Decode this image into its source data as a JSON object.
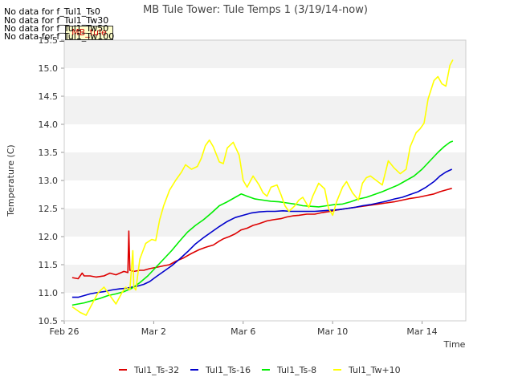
{
  "nodata_notes": [
    "No data for f_Tul1_Ts0",
    "No data for f_Tul1_Tw30",
    "No data for f_Tul1_Tw50",
    "No data for f_Tul1_Tw100"
  ],
  "site_tag": "MB_tule",
  "chart_data": {
    "type": "line",
    "title": "MB Tule Tower: Tule Temps 1 (3/19/14-now)",
    "xlabel": "Time",
    "ylabel": "Temperature (C)",
    "xlim": [
      0,
      20.2
    ],
    "ylim": [
      10.5,
      15.5
    ],
    "x_ticks": [
      {
        "x": 0,
        "label": "Feb 26"
      },
      {
        "x": 4.5,
        "label": "Mar 2"
      },
      {
        "x": 9,
        "label": "Mar 6"
      },
      {
        "x": 13.5,
        "label": "Mar 10"
      },
      {
        "x": 18,
        "label": "Mar 14"
      }
    ],
    "y_ticks": [
      10.5,
      11.0,
      11.5,
      12.0,
      12.5,
      13.0,
      13.5,
      14.0,
      14.5,
      15.0,
      15.5
    ],
    "y_tick_labels": [
      "10.5",
      "11.0",
      "11.5",
      "12.0",
      "12.5",
      "13.0",
      "13.5",
      "14.0",
      "14.5",
      "15.0",
      "15.5"
    ],
    "grid": "alternating horizontal bands",
    "legend_position": "bottom",
    "series": [
      {
        "name": "Tul1_Ts-32",
        "color": "#dd0000",
        "x": [
          0.4,
          0.7,
          0.9,
          1.0,
          1.3,
          1.6,
          2.0,
          2.3,
          2.6,
          2.8,
          3.0,
          3.2,
          3.25,
          3.3,
          3.5,
          3.8,
          4.0,
          4.3,
          4.6,
          5.0,
          5.3,
          5.6,
          6.0,
          6.4,
          6.8,
          7.2,
          7.5,
          7.8,
          8.0,
          8.3,
          8.6,
          8.9,
          9.2,
          9.5,
          9.8,
          10.2,
          10.5,
          10.9,
          11.2,
          11.5,
          11.8,
          12.2,
          12.6,
          13.0,
          13.4,
          13.8,
          14.2,
          14.6,
          15.0,
          15.4,
          15.8,
          16.2,
          16.6,
          17.0,
          17.4,
          17.8,
          18.2,
          18.6,
          18.9,
          19.2,
          19.5
        ],
        "y": [
          11.27,
          11.25,
          11.35,
          11.3,
          11.3,
          11.28,
          11.3,
          11.35,
          11.32,
          11.35,
          11.38,
          11.36,
          12.1,
          11.4,
          11.38,
          11.4,
          11.4,
          11.43,
          11.45,
          11.48,
          11.5,
          11.56,
          11.62,
          11.7,
          11.77,
          11.82,
          11.85,
          11.92,
          11.96,
          12.0,
          12.05,
          12.12,
          12.15,
          12.2,
          12.23,
          12.28,
          12.3,
          12.32,
          12.35,
          12.37,
          12.38,
          12.4,
          12.4,
          12.43,
          12.45,
          12.48,
          12.5,
          12.52,
          12.54,
          12.56,
          12.58,
          12.6,
          12.62,
          12.65,
          12.68,
          12.7,
          12.73,
          12.76,
          12.8,
          12.83,
          12.86
        ]
      },
      {
        "name": "Tul1_Ts-16",
        "color": "#0000cc",
        "x": [
          0.4,
          0.7,
          1.0,
          1.3,
          1.6,
          2.0,
          2.4,
          2.8,
          3.1,
          3.4,
          3.7,
          4.0,
          4.3,
          4.6,
          5.0,
          5.4,
          5.8,
          6.2,
          6.6,
          7.0,
          7.4,
          7.8,
          8.2,
          8.6,
          9.0,
          9.4,
          9.8,
          10.2,
          10.6,
          11.0,
          11.4,
          11.8,
          12.2,
          12.6,
          13.0,
          13.4,
          13.8,
          14.2,
          14.6,
          15.0,
          15.4,
          15.8,
          16.2,
          16.6,
          17.0,
          17.4,
          17.8,
          18.2,
          18.6,
          18.9,
          19.2,
          19.5
        ],
        "y": [
          10.92,
          10.92,
          10.95,
          10.98,
          11.0,
          11.02,
          11.05,
          11.07,
          11.08,
          11.1,
          11.12,
          11.15,
          11.2,
          11.28,
          11.38,
          11.48,
          11.6,
          11.73,
          11.87,
          11.98,
          12.08,
          12.18,
          12.27,
          12.34,
          12.38,
          12.42,
          12.44,
          12.45,
          12.45,
          12.46,
          12.45,
          12.45,
          12.45,
          12.45,
          12.46,
          12.47,
          12.48,
          12.5,
          12.52,
          12.55,
          12.57,
          12.6,
          12.63,
          12.67,
          12.7,
          12.75,
          12.8,
          12.88,
          12.98,
          13.08,
          13.15,
          13.2
        ]
      },
      {
        "name": "Tul1_Ts-8",
        "color": "#00ee00",
        "x": [
          0.4,
          0.7,
          1.0,
          1.4,
          1.8,
          2.2,
          2.6,
          3.0,
          3.4,
          3.8,
          4.2,
          4.6,
          5.0,
          5.4,
          5.8,
          6.2,
          6.6,
          7.0,
          7.4,
          7.8,
          8.2,
          8.6,
          8.9,
          9.2,
          9.6,
          10.0,
          10.4,
          10.8,
          11.2,
          11.6,
          12.0,
          12.4,
          12.8,
          13.2,
          13.6,
          14.0,
          14.4,
          14.8,
          15.2,
          15.6,
          16.0,
          16.4,
          16.8,
          17.2,
          17.6,
          18.0,
          18.4,
          18.8,
          19.1,
          19.4,
          19.55
        ],
        "y": [
          10.78,
          10.8,
          10.82,
          10.86,
          10.9,
          10.95,
          10.98,
          11.02,
          11.08,
          11.18,
          11.3,
          11.45,
          11.6,
          11.75,
          11.92,
          12.08,
          12.2,
          12.3,
          12.42,
          12.55,
          12.62,
          12.7,
          12.76,
          12.72,
          12.67,
          12.65,
          12.63,
          12.62,
          12.6,
          12.58,
          12.55,
          12.54,
          12.53,
          12.55,
          12.57,
          12.58,
          12.62,
          12.67,
          12.7,
          12.75,
          12.8,
          12.86,
          12.92,
          13.0,
          13.08,
          13.2,
          13.35,
          13.5,
          13.6,
          13.68,
          13.7
        ]
      },
      {
        "name": "Tul1_Tw+10",
        "color": "#ffff00",
        "x": [
          0.4,
          0.8,
          1.1,
          1.4,
          1.7,
          2.0,
          2.3,
          2.6,
          2.9,
          3.1,
          3.3,
          3.45,
          3.5,
          3.6,
          3.8,
          4.1,
          4.4,
          4.6,
          4.8,
          5.0,
          5.3,
          5.6,
          5.9,
          6.1,
          6.4,
          6.7,
          6.9,
          7.1,
          7.3,
          7.5,
          7.8,
          8.0,
          8.2,
          8.5,
          8.8,
          9.0,
          9.2,
          9.5,
          9.8,
          10.0,
          10.2,
          10.4,
          10.7,
          10.9,
          11.1,
          11.3,
          11.6,
          11.8,
          12.0,
          12.3,
          12.5,
          12.8,
          13.1,
          13.3,
          13.5,
          13.7,
          14.0,
          14.2,
          14.5,
          14.8,
          15.0,
          15.2,
          15.4,
          15.7,
          16.0,
          16.3,
          16.6,
          16.9,
          17.2,
          17.4,
          17.7,
          17.9,
          18.1,
          18.3,
          18.6,
          18.8,
          19.0,
          19.2,
          19.4,
          19.55
        ],
        "y": [
          10.75,
          10.65,
          10.6,
          10.8,
          11.0,
          11.1,
          10.95,
          10.8,
          11.0,
          11.1,
          11.05,
          11.75,
          11.1,
          11.05,
          11.6,
          11.88,
          11.95,
          11.93,
          12.3,
          12.55,
          12.83,
          13.0,
          13.15,
          13.28,
          13.2,
          13.25,
          13.4,
          13.62,
          13.72,
          13.6,
          13.33,
          13.3,
          13.58,
          13.68,
          13.45,
          13.0,
          12.88,
          13.08,
          12.92,
          12.78,
          12.72,
          12.88,
          12.92,
          12.75,
          12.55,
          12.45,
          12.55,
          12.65,
          12.7,
          12.52,
          12.72,
          12.95,
          12.85,
          12.5,
          12.38,
          12.62,
          12.88,
          12.98,
          12.78,
          12.65,
          12.95,
          13.05,
          13.08,
          13.0,
          12.92,
          13.35,
          13.22,
          13.12,
          13.2,
          13.6,
          13.85,
          13.92,
          14.02,
          14.45,
          14.78,
          14.85,
          14.72,
          14.68,
          15.05,
          15.15
        ]
      }
    ]
  }
}
